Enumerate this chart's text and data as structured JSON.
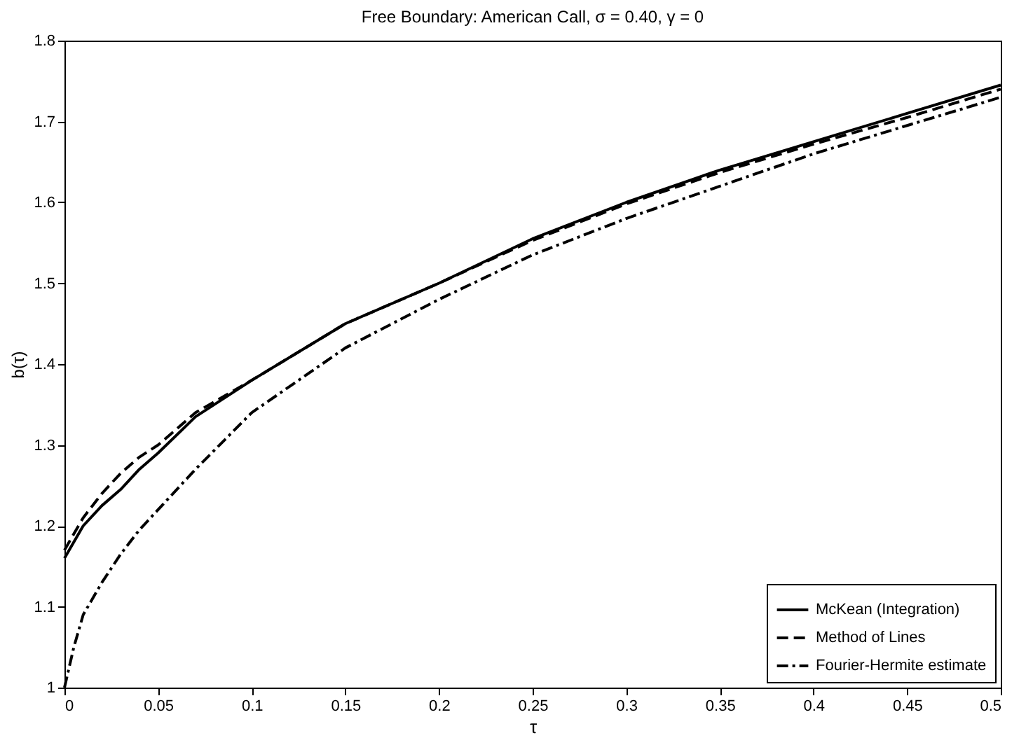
{
  "chart_data": {
    "type": "line",
    "title": "Free Boundary: American Call, σ = 0.40, γ = 0",
    "xlabel": "τ",
    "ylabel": "b(τ)",
    "xlim": [
      0,
      0.5
    ],
    "ylim": [
      1,
      1.8
    ],
    "xticks": [
      0,
      0.05,
      0.1,
      0.15,
      0.2,
      0.25,
      0.3,
      0.35,
      0.4,
      0.45,
      0.5
    ],
    "yticks": [
      1,
      1.1,
      1.2,
      1.3,
      1.4,
      1.5,
      1.6,
      1.7,
      1.8
    ],
    "grid": false,
    "legend": "bottom right",
    "marker": "none",
    "series": [
      {
        "name": "McKean (Integration)",
        "color": "#000000",
        "line_style": "solid",
        "x": [
          0,
          0.01,
          0.02,
          0.03,
          0.04,
          0.05,
          0.07,
          0.1,
          0.15,
          0.2,
          0.25,
          0.3,
          0.35,
          0.4,
          0.45,
          0.5
        ],
        "values": [
          1.16,
          1.2,
          1.225,
          1.245,
          1.27,
          1.29,
          1.335,
          1.38,
          1.45,
          1.5,
          1.555,
          1.6,
          1.64,
          1.675,
          1.71,
          1.745
        ]
      },
      {
        "name": "Method of Lines",
        "color": "#000000",
        "line_style": "dashed",
        "x": [
          0,
          0.005,
          0.01,
          0.02,
          0.03,
          0.04,
          0.05,
          0.07,
          0.1,
          0.15,
          0.2,
          0.25,
          0.3,
          0.35,
          0.4,
          0.45,
          0.5
        ],
        "values": [
          1.17,
          1.19,
          1.21,
          1.24,
          1.265,
          1.285,
          1.3,
          1.34,
          1.38,
          1.45,
          1.5,
          1.553,
          1.598,
          1.637,
          1.672,
          1.705,
          1.74
        ]
      },
      {
        "name": "Fourier-Hermite estimate",
        "color": "#000000",
        "line_style": "dashdot",
        "x": [
          0,
          0.002,
          0.005,
          0.01,
          0.02,
          0.03,
          0.04,
          0.05,
          0.07,
          0.1,
          0.15,
          0.2,
          0.25,
          0.3,
          0.35,
          0.4,
          0.45,
          0.5
        ],
        "values": [
          1.0,
          1.02,
          1.05,
          1.09,
          1.13,
          1.165,
          1.195,
          1.22,
          1.27,
          1.34,
          1.42,
          1.48,
          1.535,
          1.58,
          1.62,
          1.66,
          1.695,
          1.73
        ]
      }
    ]
  }
}
